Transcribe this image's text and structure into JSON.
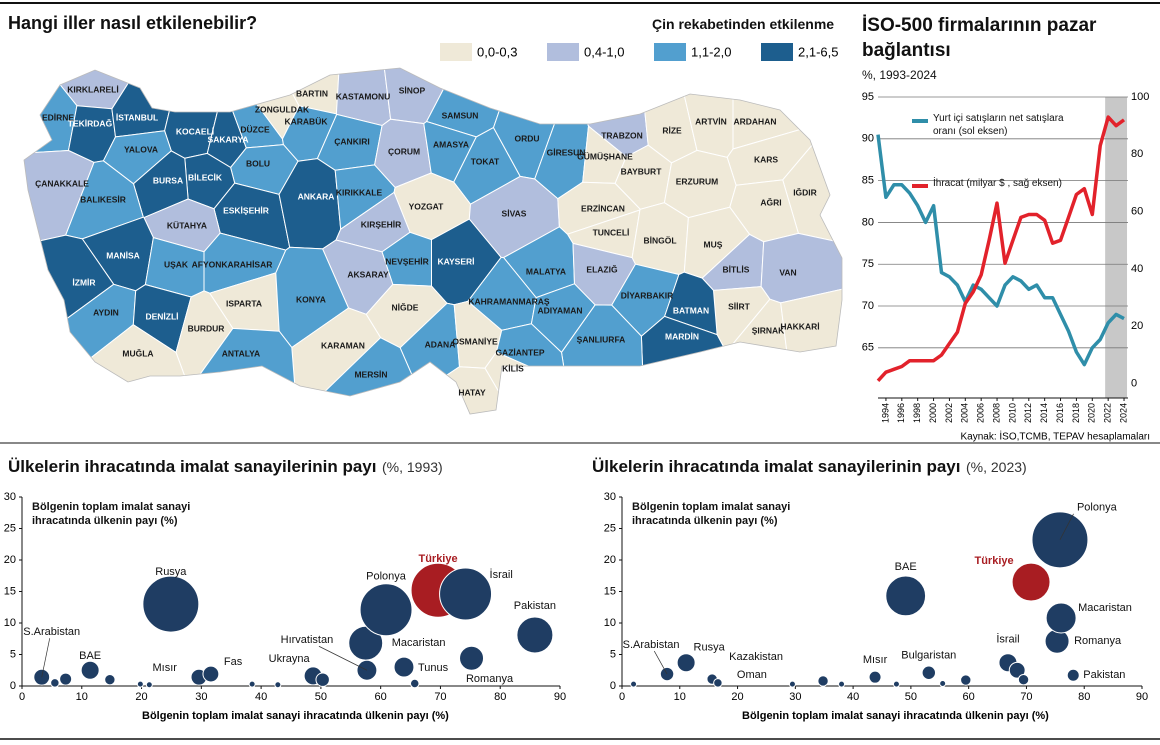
{
  "chart_data": [
    {
      "type": "map",
      "title": "Hangi iller nasıl etkilenebilir?",
      "legend_title": "Çin rekabetinden etkilenme",
      "legend": [
        "0,0-0,3",
        "0,4-1,0",
        "1,1-2,0",
        "2,1-6,5"
      ],
      "colors": [
        "#efe9d8",
        "#b1bedd",
        "#529fcf",
        "#1d5e8e"
      ],
      "regions": [
        {
          "name": "KIRKLARELİ",
          "class": 1
        },
        {
          "name": "EDİRNE",
          "class": 2
        },
        {
          "name": "TEKİRDAĞ",
          "class": 3
        },
        {
          "name": "İSTANBUL",
          "class": 3
        },
        {
          "name": "KOCAELİ",
          "class": 3
        },
        {
          "name": "SAKARYA",
          "class": 3
        },
        {
          "name": "DÜZCE",
          "class": 2
        },
        {
          "name": "ZONGULDAK",
          "class": 0
        },
        {
          "name": "BARTIN",
          "class": 0
        },
        {
          "name": "KARABÜK",
          "class": 2
        },
        {
          "name": "KASTAMONU",
          "class": 1
        },
        {
          "name": "SİNOP",
          "class": 1
        },
        {
          "name": "SAMSUN",
          "class": 2
        },
        {
          "name": "ÇANKIRI",
          "class": 2
        },
        {
          "name": "ÇORUM",
          "class": 1
        },
        {
          "name": "AMASYA",
          "class": 2
        },
        {
          "name": "TOKAT",
          "class": 2
        },
        {
          "name": "ORDU",
          "class": 2
        },
        {
          "name": "GİRESUN",
          "class": 2
        },
        {
          "name": "TRABZON",
          "class": 1
        },
        {
          "name": "RİZE",
          "class": 0
        },
        {
          "name": "ARTVİN",
          "class": 0
        },
        {
          "name": "ARDAHAN",
          "class": 0
        },
        {
          "name": "GÜMÜŞHANE",
          "class": 0
        },
        {
          "name": "BAYBURT",
          "class": 0
        },
        {
          "name": "KARS",
          "class": 0
        },
        {
          "name": "ERZURUM",
          "class": 0
        },
        {
          "name": "IĞDIR",
          "class": 0
        },
        {
          "name": "AĞRI",
          "class": 0
        },
        {
          "name": "YALOVA",
          "class": 2
        },
        {
          "name": "BOLU",
          "class": 2
        },
        {
          "name": "BİLECİK",
          "class": 3
        },
        {
          "name": "BURSA",
          "class": 3
        },
        {
          "name": "ÇANAKKALE",
          "class": 1
        },
        {
          "name": "BALIKESİR",
          "class": 2
        },
        {
          "name": "ESKİŞEHİR",
          "class": 3
        },
        {
          "name": "ANKARA",
          "class": 3
        },
        {
          "name": "KIRIKKALE",
          "class": 2
        },
        {
          "name": "YOZGAT",
          "class": 0
        },
        {
          "name": "SİVAS",
          "class": 1
        },
        {
          "name": "ERZİNCAN",
          "class": 0
        },
        {
          "name": "KÜTAHYA",
          "class": 1
        },
        {
          "name": "KIRŞEHİR",
          "class": 1
        },
        {
          "name": "TUNCELİ",
          "class": 0
        },
        {
          "name": "BİNGÖL",
          "class": 0
        },
        {
          "name": "MUŞ",
          "class": 0
        },
        {
          "name": "MANİSA",
          "class": 3
        },
        {
          "name": "UŞAK",
          "class": 2
        },
        {
          "name": "AFYONKARAHİSAR",
          "class": 2
        },
        {
          "name": "NEVŞEHİR",
          "class": 2
        },
        {
          "name": "KAYSERİ",
          "class": 3
        },
        {
          "name": "MALATYA",
          "class": 2
        },
        {
          "name": "ELAZIĞ",
          "class": 1
        },
        {
          "name": "BİTLİS",
          "class": 1
        },
        {
          "name": "VAN",
          "class": 1
        },
        {
          "name": "İZMİR",
          "class": 3
        },
        {
          "name": "AKSARAY",
          "class": 1
        },
        {
          "name": "DİYARBAKIR",
          "class": 2
        },
        {
          "name": "ISPARTA",
          "class": 0
        },
        {
          "name": "KONYA",
          "class": 2
        },
        {
          "name": "NİĞDE",
          "class": 0
        },
        {
          "name": "KAHRAMANMARAŞ",
          "class": 2
        },
        {
          "name": "ADIYAMAN",
          "class": 2
        },
        {
          "name": "SİİRT",
          "class": 0
        },
        {
          "name": "BATMAN",
          "class": 3
        },
        {
          "name": "AYDIN",
          "class": 2
        },
        {
          "name": "DENİZLİ",
          "class": 3
        },
        {
          "name": "BURDUR",
          "class": 0
        },
        {
          "name": "ŞIRNAK",
          "class": 0
        },
        {
          "name": "HAKKARİ",
          "class": 0
        },
        {
          "name": "MARDİN",
          "class": 3
        },
        {
          "name": "KARAMAN",
          "class": 0
        },
        {
          "name": "ADANA",
          "class": 2
        },
        {
          "name": "OSMANİYE",
          "class": 0
        },
        {
          "name": "ŞANLIURFA",
          "class": 2
        },
        {
          "name": "GAZİANTEP",
          "class": 2
        },
        {
          "name": "MUĞLA",
          "class": 0
        },
        {
          "name": "ANTALYA",
          "class": 2
        },
        {
          "name": "KİLİS",
          "class": 0
        },
        {
          "name": "MERSİN",
          "class": 2
        },
        {
          "name": "HATAY",
          "class": 0
        }
      ]
    },
    {
      "type": "line",
      "title": "İSO-500 firmalarının pazar bağlantısı",
      "subtitle": "%, 1993-2024",
      "x": [
        1993,
        1994,
        1995,
        1996,
        1997,
        1998,
        1999,
        2000,
        2001,
        2002,
        2003,
        2004,
        2005,
        2006,
        2007,
        2008,
        2009,
        2010,
        2011,
        2012,
        2013,
        2014,
        2015,
        2016,
        2017,
        2018,
        2019,
        2020,
        2021,
        2022,
        2023,
        2024
      ],
      "series": [
        {
          "name": "Yurt içi satışların net satışlara oranı (sol eksen)",
          "color": "#2f8ea9",
          "values": [
            90.5,
            83,
            84.5,
            84.5,
            83.5,
            82,
            80,
            82,
            74,
            73.5,
            72.5,
            70.5,
            72.5,
            72,
            71,
            70,
            72.5,
            73.5,
            73,
            72,
            72.5,
            71,
            71,
            69,
            67,
            64.5,
            63,
            65,
            66,
            68,
            69,
            68.5
          ]
        },
        {
          "name": "İhracat (milyar $ , sağ eksen)",
          "color": "#e2222b",
          "axis": "y2",
          "values": [
            1,
            4,
            5,
            6,
            8,
            8,
            8,
            8,
            10,
            14,
            18,
            28,
            32,
            38,
            50,
            63,
            42,
            50,
            58,
            59,
            59,
            57,
            49,
            50,
            58,
            66,
            68,
            59,
            83,
            93,
            90,
            92
          ]
        }
      ],
      "xlim": [
        1993,
        2024.5
      ],
      "xticks": [
        1994,
        1996,
        1998,
        2000,
        2002,
        2004,
        2006,
        2008,
        2010,
        2012,
        2014,
        2016,
        2018,
        2020,
        2022,
        2024
      ],
      "ylim": [
        59,
        95
      ],
      "yticks": [
        65,
        70,
        75,
        80,
        85,
        90,
        95
      ],
      "y2lim": [
        -5,
        100
      ],
      "y2ticks": [
        0,
        20,
        40,
        60,
        80,
        100
      ],
      "shaded_range": [
        2022,
        2024
      ],
      "grid": true,
      "source": "Kaynak: İSO,TCMB, TEPAV hesaplamaları"
    },
    {
      "type": "bubble",
      "title": "Ülkelerin ihracatında imalat sanayilerinin payı",
      "subtitle": "(%, 1993)",
      "ylabel": "Bölgenin toplam imalat sanayi ihracatında ülkenin payı (%)",
      "xlabel": "Bölgenin toplam imalat sanayi ihracatında ülkenin payı (%)",
      "color": "#1f3d63",
      "highlight": "Türkiye",
      "highlight_color": "#a81d22",
      "categories": [
        "S.Arabistan",
        null,
        null,
        "BAE",
        null,
        null,
        null,
        "Rusya",
        "Mısır",
        "Fas",
        null,
        null,
        "Ukrayna",
        null,
        "Hırvatistan",
        "Macaristan",
        "Polonya",
        "Tunus",
        null,
        "Türkiye",
        "İsrail",
        "Romanya",
        "Pakistan"
      ],
      "x": [
        3.3,
        5.5,
        7.3,
        11.4,
        14.7,
        19.8,
        21.3,
        24.9,
        29.6,
        31.6,
        38.5,
        42.8,
        48.7,
        50.3,
        57.7,
        57.5,
        60.9,
        63.9,
        65.7,
        69.6,
        74.2,
        75.2,
        85.8
      ],
      "values": [
        1.4,
        0.5,
        1.1,
        2.5,
        1.0,
        0.3,
        0.2,
        13.0,
        1.4,
        1.9,
        0.3,
        0.2,
        1.6,
        1.0,
        2.5,
        6.8,
        12.1,
        3.0,
        0.4,
        15.2,
        14.6,
        4.4,
        8.1
      ],
      "sizes": [
        7,
        2,
        4,
        9,
        3,
        1,
        1,
        87,
        7,
        7,
        1,
        1,
        9,
        5,
        11,
        32,
        75,
        11,
        2,
        81,
        75,
        16,
        36
      ],
      "xlim": [
        0,
        90
      ],
      "xticks": [
        0,
        10,
        20,
        30,
        40,
        50,
        60,
        70,
        80,
        90
      ],
      "ylim": [
        0,
        30
      ],
      "yticks": [
        0,
        5,
        10,
        15,
        20,
        25,
        30
      ]
    },
    {
      "type": "bubble",
      "title": "Ülkelerin ihracatında imalat sanayilerinin payı",
      "subtitle": "(%, 2023)",
      "ylabel": "Bölgenin toplam imalat sanayi ihracatında ülkenin payı (%)",
      "xlabel": "Bölgenin toplam imalat sanayi ihracatında ülkenin payı (%)",
      "color": "#1f3d63",
      "highlight": "Türkiye",
      "highlight_color": "#a81d22",
      "categories": [
        null,
        "S.Arabistan",
        "Rusya",
        "Kazakistan",
        "Oman",
        null,
        null,
        null,
        "Mısır",
        null,
        "BAE",
        "Bulgaristan",
        null,
        null,
        "İsrail",
        null,
        null,
        "Türkiye",
        "Romanya",
        "Polonya",
        "Macaristan",
        "Pakistan"
      ],
      "x": [
        2,
        7.8,
        11.1,
        15.6,
        16.6,
        29.5,
        34.8,
        38,
        43.8,
        47.5,
        49.1,
        53.1,
        55.5,
        59.5,
        66.8,
        68.4,
        69.5,
        70.8,
        75.3,
        75.8,
        76,
        78.1
      ],
      "values": [
        0.3,
        1.9,
        3.7,
        1.1,
        0.5,
        0.3,
        0.8,
        0.3,
        1.4,
        0.3,
        14.3,
        2.1,
        0.4,
        0.95,
        3.7,
        2.5,
        1.0,
        16.5,
        7.1,
        23.2,
        10.8,
        1.7
      ],
      "sizes": [
        1,
        5,
        9,
        3,
        2,
        1,
        3,
        1,
        4,
        1,
        44,
        5,
        1,
        3,
        9,
        7,
        3,
        40,
        16,
        87,
        25,
        4
      ],
      "xlim": [
        0,
        90
      ],
      "xticks": [
        0,
        10,
        20,
        30,
        40,
        50,
        60,
        70,
        80,
        90
      ],
      "ylim": [
        0,
        30
      ],
      "yticks": [
        0,
        5,
        10,
        15,
        20,
        25,
        30
      ]
    }
  ]
}
